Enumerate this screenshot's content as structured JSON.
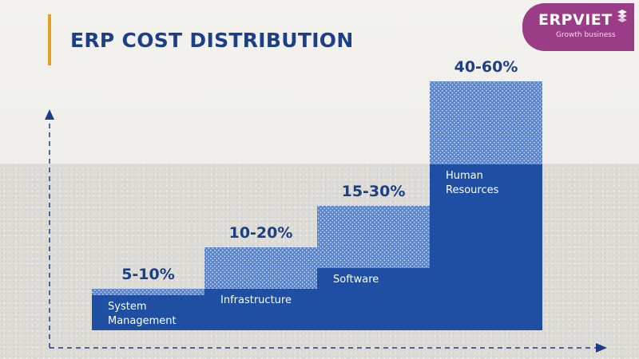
{
  "brand": {
    "name": "ERPVIET",
    "tagline": "Growth business"
  },
  "colors": {
    "title": "#1c3f86",
    "accent": "#e2a21f",
    "bar": "#1e4fa3",
    "bar_top": "#5d86c9",
    "logo_bg": "#9b3d86",
    "axis": "#1c3f86"
  },
  "chart_data": {
    "type": "bar",
    "title": "ERP COST DISTRIBUTION",
    "xlabel": "",
    "ylabel": "",
    "ylim": [
      0,
      65
    ],
    "grid": false,
    "categories": [
      {
        "label_lines": [
          "System",
          "Management"
        ],
        "range_label": "5-10%",
        "min": 5,
        "max": 10
      },
      {
        "label_lines": [
          "Infrastructure"
        ],
        "range_label": "10-20%",
        "min": 10,
        "max": 20
      },
      {
        "label_lines": [
          "Software"
        ],
        "range_label": "15-30%",
        "min": 15,
        "max": 30
      },
      {
        "label_lines": [
          "Human",
          "Resources"
        ],
        "range_label": "40-60%",
        "min": 40,
        "max": 60
      }
    ]
  }
}
